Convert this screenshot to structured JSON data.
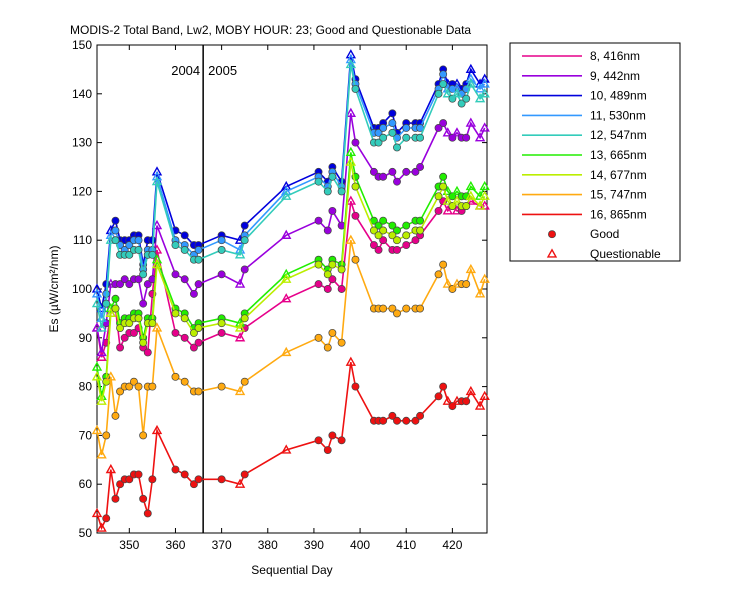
{
  "chart_data": {
    "type": "line",
    "title": "MODIS-2 Total Band,  Lw2, MOBY HOUR: 23;  Good and Questionable Data",
    "xlabel": "Sequential Day",
    "ylabel": "Es (µW/cm²/nm)",
    "xlim": [
      343,
      427.5
    ],
    "ylim": [
      50,
      150
    ],
    "xticks": [
      350,
      360,
      370,
      380,
      390,
      400,
      410,
      420
    ],
    "yticks": [
      50,
      60,
      70,
      80,
      90,
      100,
      110,
      120,
      130,
      140,
      150
    ],
    "grid": false,
    "legend_position": "outside-right",
    "year_divider": {
      "x": 366,
      "left_label": "2004",
      "right_label": "2005"
    },
    "marker_legend": {
      "good": "Good",
      "questionable": "Questionable"
    },
    "x": [
      343,
      344,
      345,
      346,
      347,
      348,
      349,
      350,
      351,
      352,
      353,
      354,
      355,
      356,
      360,
      362,
      364,
      365,
      370,
      374,
      375,
      384,
      391,
      393,
      394,
      396,
      398,
      399,
      403,
      404,
      405,
      407,
      408,
      410,
      412,
      413,
      417,
      418,
      419,
      420,
      421,
      422,
      423,
      424,
      426,
      427
    ],
    "questionable": [
      true,
      true,
      false,
      true,
      false,
      false,
      false,
      false,
      false,
      false,
      false,
      false,
      false,
      true,
      false,
      false,
      false,
      false,
      false,
      true,
      false,
      true,
      false,
      false,
      false,
      false,
      true,
      false,
      false,
      false,
      false,
      false,
      false,
      false,
      false,
      false,
      false,
      false,
      true,
      false,
      true,
      false,
      false,
      true,
      true,
      true
    ],
    "series": [
      {
        "name": "8, 416nm",
        "color": "#e6008a",
        "values": [
          92,
          86,
          89,
          95,
          96,
          88,
          90,
          91,
          91,
          92,
          88,
          87,
          99,
          108,
          91,
          90,
          88,
          89,
          91,
          90,
          92,
          98,
          101,
          100,
          102,
          100,
          118,
          115,
          109,
          108,
          110,
          108,
          108,
          109,
          110,
          111,
          116,
          118,
          116,
          117,
          116,
          116,
          117,
          118,
          117,
          117
        ]
      },
      {
        "name": "9, 442nm",
        "color": "#9900dd",
        "values": [
          92,
          87,
          93,
          101,
          101,
          101,
          102,
          101,
          102,
          102,
          97,
          101,
          102,
          113,
          103,
          102,
          99,
          101,
          103,
          101,
          104,
          111,
          114,
          112,
          116,
          113,
          136,
          130,
          124,
          123,
          123,
          124,
          122,
          124,
          124,
          125,
          133,
          134,
          132,
          131,
          132,
          131,
          131,
          134,
          131,
          133
        ]
      },
      {
        "name": "10, 489nm",
        "color": "#0000dd",
        "values": [
          100,
          96,
          101,
          112,
          114,
          110,
          110,
          110,
          111,
          111,
          105,
          110,
          110,
          124,
          112,
          111,
          109,
          109,
          111,
          110,
          113,
          121,
          124,
          122,
          125,
          122,
          148,
          143,
          133,
          133,
          134,
          136,
          132,
          134,
          134,
          134,
          142,
          145,
          142,
          142,
          142,
          141,
          142,
          145,
          142,
          143
        ]
      },
      {
        "name": "11, 530nm",
        "color": "#3399ff",
        "values": [
          99,
          94,
          99,
          111,
          112,
          109,
          108,
          109,
          110,
          110,
          104,
          108,
          108,
          123,
          110,
          109,
          107,
          108,
          110,
          108,
          111,
          120,
          123,
          121,
          124,
          121,
          147,
          142,
          132,
          132,
          133,
          134,
          131,
          133,
          133,
          133,
          141,
          144,
          141,
          141,
          141,
          140,
          141,
          143,
          141,
          142
        ]
      },
      {
        "name": "12, 547nm",
        "color": "#33ccbb",
        "values": [
          97,
          92,
          97,
          110,
          110,
          107,
          107,
          107,
          108,
          108,
          103,
          107,
          107,
          122,
          109,
          108,
          106,
          106,
          108,
          107,
          110,
          119,
          122,
          120,
          123,
          120,
          146,
          141,
          130,
          130,
          131,
          132,
          129,
          131,
          131,
          131,
          140,
          142,
          140,
          139,
          140,
          138,
          139,
          142,
          139,
          140
        ]
      },
      {
        "name": "13, 665nm",
        "color": "#22ee00",
        "values": [
          84,
          78,
          82,
          96,
          98,
          93,
          94,
          94,
          95,
          95,
          90,
          94,
          94,
          106,
          96,
          95,
          92,
          93,
          94,
          93,
          95,
          103,
          106,
          104,
          106,
          105,
          128,
          123,
          114,
          113,
          114,
          113,
          112,
          113,
          114,
          114,
          121,
          123,
          120,
          119,
          120,
          119,
          119,
          121,
          119,
          121
        ]
      },
      {
        "name": "14, 677nm",
        "color": "#bbee00",
        "values": [
          82,
          77,
          81,
          95,
          96,
          92,
          93,
          93,
          94,
          94,
          89,
          93,
          93,
          105,
          95,
          94,
          91,
          92,
          93,
          92,
          94,
          102,
          105,
          103,
          105,
          104,
          126,
          121,
          112,
          111,
          112,
          111,
          110,
          111,
          112,
          112,
          119,
          121,
          118,
          117,
          118,
          117,
          117,
          119,
          117,
          119
        ]
      },
      {
        "name": "15, 747nm",
        "color": "#ffaa11",
        "values": [
          71,
          66,
          70,
          82,
          74,
          79,
          80,
          80,
          81,
          80,
          70,
          80,
          80,
          92,
          82,
          81,
          79,
          79,
          80,
          79,
          81,
          87,
          90,
          88,
          91,
          89,
          110,
          106,
          96,
          96,
          96,
          96,
          95,
          96,
          96,
          96,
          103,
          105,
          101,
          100,
          101,
          101,
          101,
          104,
          99,
          102
        ]
      },
      {
        "name": "16, 865nm",
        "color": "#ee1111",
        "values": [
          54,
          51,
          53,
          63,
          57,
          60,
          61,
          61,
          62,
          62,
          57,
          54,
          61,
          71,
          63,
          62,
          60,
          61,
          61,
          60,
          62,
          67,
          69,
          67,
          70,
          69,
          85,
          80,
          73,
          73,
          73,
          74,
          73,
          73,
          73,
          74,
          78,
          80,
          77,
          76,
          77,
          77,
          77,
          79,
          76,
          78
        ]
      }
    ]
  }
}
